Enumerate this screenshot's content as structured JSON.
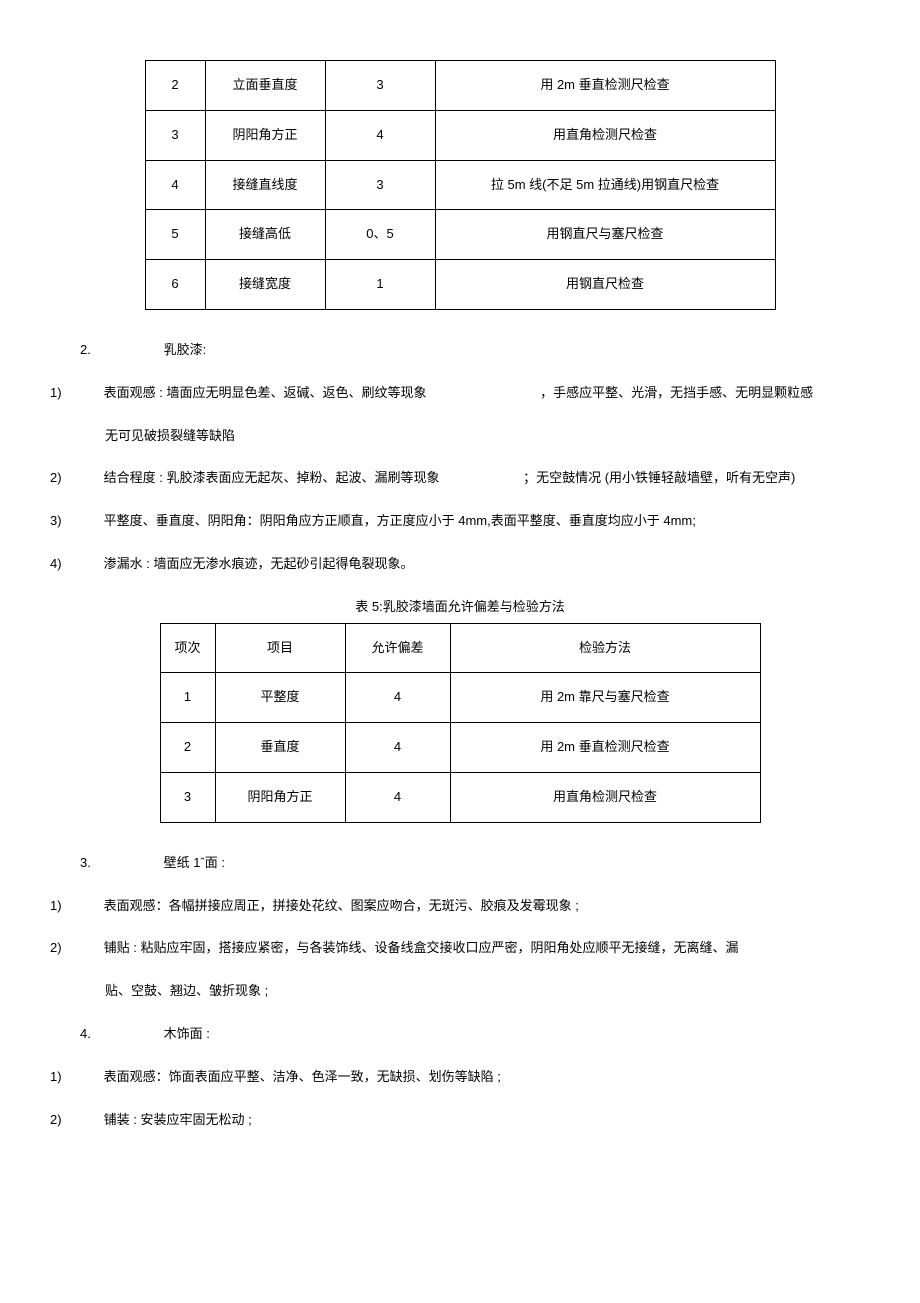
{
  "table1": {
    "rows": [
      {
        "n": "2",
        "item": "立面垂直度",
        "tol": "3",
        "method": "用 2m 垂直检测尺检查"
      },
      {
        "n": "3",
        "item": "阴阳角方正",
        "tol": "4",
        "method": "用直角检测尺检查"
      },
      {
        "n": "4",
        "item": "接缝直线度",
        "tol": "3",
        "method": "拉 5m 线(不足 5m 拉通线)用钢直尺检查"
      },
      {
        "n": "5",
        "item": "接缝高低",
        "tol": "0、5",
        "method": "用钢直尺与塞尺检查"
      },
      {
        "n": "6",
        "item": "接缝宽度",
        "tol": "1",
        "method": "用钢直尺检查"
      }
    ],
    "col_widths": [
      "60px",
      "120px",
      "110px",
      "340px"
    ]
  },
  "sec2_num": "2.",
  "sec2_title": "乳胶漆:",
  "p1_num": "1)",
  "p1a": "表面观感 : 墙面应无明显色差、返碱、返色、刷纹等现象",
  "p1b": "，手感应平整、光滑，无挡手感、无明显颗粒感",
  "p1c": "无可见破损裂缝等缺陷",
  "p2_num": "2)",
  "p2a": "结合程度 : 乳胶漆表面应无起灰、掉粉、起波、漏刷等现象",
  "p2b": "；无空鼓情况 (用小铁锤轻敲墙壁，听有无空声)",
  "p3_num": "3)",
  "p3": "平整度、垂直度、阴阳角：阴阳角应方正顺直，方正度应小于 4mm,表面平整度、垂直度均应小于 4mm;",
  "p4_num": "4)",
  "p4": "渗漏水 : 墙面应无渗水痕迹，无起砂引起得龟裂现象。",
  "table2": {
    "caption": "表 5:乳胶漆墙面允许偏差与检验方法",
    "headers": [
      "项次",
      "项目",
      "允许偏差",
      "检验方法"
    ],
    "rows": [
      {
        "n": "1",
        "item": "平整度",
        "tol": "4",
        "method": "用 2m 靠尺与塞尺检查"
      },
      {
        "n": "2",
        "item": "垂直度",
        "tol": "4",
        "method": "用 2m 垂直检测尺检查"
      },
      {
        "n": "3",
        "item": "阴阳角方正",
        "tol": "4",
        "method": "用直角检测尺检查"
      }
    ],
    "col_widths": [
      "55px",
      "130px",
      "105px",
      "310px"
    ]
  },
  "sec3_num": "3.",
  "sec3_title": "壁纸 1ˆ面 :",
  "q1_num": "1)",
  "q1": "表面观感：各幅拼接应周正，拼接处花纹、图案应吻合，无斑污、胶痕及发霉现象 ;",
  "q2_num": "2)",
  "q2a": "铺贴 : 粘贴应牢固，搭接应紧密，与各装饰线、设备线盒交接收口应严密，阴阳角处应顺平无接缝，无离缝、漏",
  "q2b": "贴、空鼓、翘边、皱折现象 ;",
  "sec4_num": "4.",
  "sec4_title": "木饰面 :",
  "r1_num": "1)",
  "r1": "表面观感：饰面表面应平整、洁净、色泽一致，无缺损、划伤等缺陷 ;",
  "r2_num": "2)",
  "r2": "铺装 : 安装应牢固无松动 ;"
}
